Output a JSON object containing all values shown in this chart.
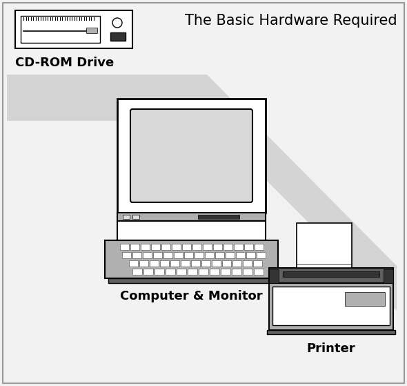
{
  "title": "The Basic Hardware Required",
  "label_cdrom": "CD-ROM Drive",
  "label_computer": "Computer & Monitor",
  "label_printer": "Printer",
  "bg_color": "#f2f2f2",
  "border_color": "#888888",
  "white": "#ffffff",
  "light_gray": "#e0e0e0",
  "mid_gray": "#b0b0b0",
  "dark_gray": "#606060",
  "very_dark": "#333333",
  "beam_color": "#d4d4d4",
  "screen_fill": "#d8d8d8",
  "title_fontsize": 15,
  "label_fontsize": 13
}
